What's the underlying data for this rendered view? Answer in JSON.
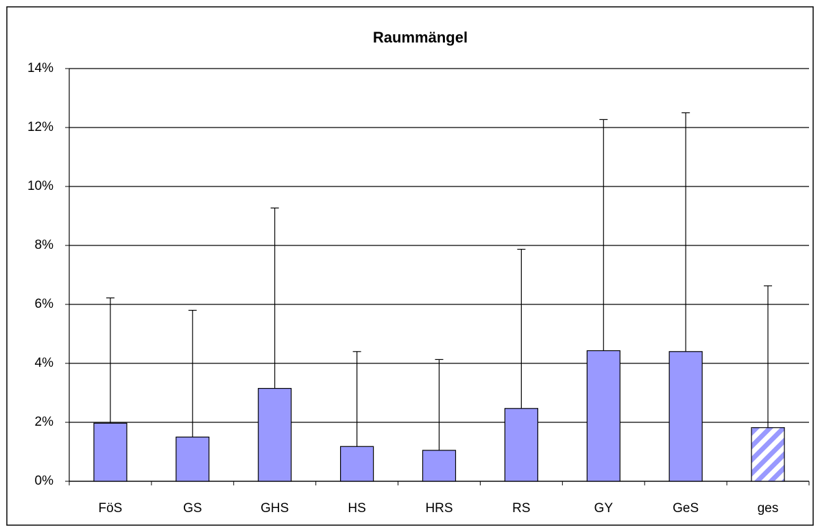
{
  "chart_data": {
    "type": "bar",
    "title": "Raummängel",
    "categories": [
      "FöS",
      "GS",
      "GHS",
      "HS",
      "HRS",
      "RS",
      "GY",
      "GeS",
      "ges"
    ],
    "values": [
      1.97,
      1.5,
      3.15,
      1.18,
      1.05,
      2.47,
      4.43,
      4.4,
      1.82
    ],
    "errors": [
      4.25,
      4.3,
      6.12,
      3.22,
      3.08,
      5.4,
      7.84,
      8.1,
      4.81
    ],
    "hatch": [
      false,
      false,
      false,
      false,
      false,
      false,
      false,
      false,
      true
    ],
    "color": "#9999ff",
    "ylim": [
      0,
      14
    ],
    "yticks": [
      {
        "value": 0,
        "label": "0%"
      },
      {
        "value": 2,
        "label": "2%"
      },
      {
        "value": 4,
        "label": "4%"
      },
      {
        "value": 6,
        "label": "6%"
      },
      {
        "value": 8,
        "label": "8%"
      },
      {
        "value": 10,
        "label": "10%"
      },
      {
        "value": 12,
        "label": "12%"
      },
      {
        "value": 14,
        "label": "14%"
      }
    ],
    "grid": true
  }
}
